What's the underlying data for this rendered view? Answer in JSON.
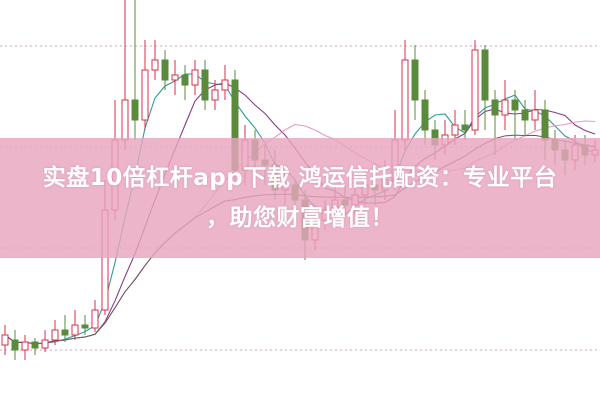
{
  "overlay": {
    "line1": "实盘10倍杠杆app下载 鸿运信托配资：专业平台",
    "line2": "，助您财富增值！"
  },
  "chart_data": {
    "type": "candlestick",
    "ylim": [
      0,
      400
    ],
    "grid": true,
    "colors": {
      "up": "#d9304a",
      "down": "#5b8a3c",
      "ma": [
        "#2a9d9a",
        "#8a3a8a",
        "#e79ac0",
        "#6b5a5a"
      ]
    },
    "moving_averages": [
      5,
      10,
      20,
      40
    ],
    "candles": [
      [
        55,
        65,
        75,
        45
      ],
      [
        60,
        50,
        70,
        40
      ],
      [
        50,
        58,
        65,
        40
      ],
      [
        58,
        52,
        62,
        45
      ],
      [
        52,
        60,
        70,
        48
      ],
      [
        60,
        70,
        80,
        55
      ],
      [
        70,
        65,
        85,
        58
      ],
      [
        65,
        75,
        90,
        60
      ],
      [
        75,
        72,
        85,
        65
      ],
      [
        72,
        90,
        100,
        68
      ],
      [
        90,
        190,
        220,
        85
      ],
      [
        190,
        260,
        300,
        180
      ],
      [
        260,
        300,
        400,
        250
      ],
      [
        300,
        280,
        400,
        260
      ],
      [
        280,
        330,
        360,
        270
      ],
      [
        330,
        340,
        360,
        320
      ],
      [
        340,
        320,
        350,
        310
      ],
      [
        320,
        325,
        340,
        305
      ],
      [
        325,
        315,
        335,
        300
      ],
      [
        315,
        330,
        340,
        305
      ],
      [
        330,
        300,
        340,
        290
      ],
      [
        300,
        310,
        320,
        290
      ],
      [
        310,
        320,
        335,
        300
      ],
      [
        320,
        230,
        330,
        220
      ],
      [
        230,
        260,
        275,
        215
      ],
      [
        260,
        240,
        270,
        225
      ],
      [
        240,
        235,
        255,
        215
      ],
      [
        235,
        210,
        250,
        200
      ],
      [
        210,
        215,
        230,
        195
      ],
      [
        215,
        200,
        220,
        185
      ],
      [
        200,
        160,
        210,
        140
      ],
      [
        160,
        180,
        190,
        150
      ],
      [
        180,
        190,
        200,
        170
      ],
      [
        190,
        200,
        215,
        180
      ],
      [
        200,
        195,
        215,
        185
      ],
      [
        195,
        205,
        220,
        185
      ],
      [
        205,
        215,
        230,
        195
      ],
      [
        215,
        210,
        225,
        195
      ],
      [
        210,
        220,
        240,
        200
      ],
      [
        220,
        260,
        290,
        210
      ],
      [
        260,
        340,
        360,
        250
      ],
      [
        340,
        300,
        355,
        280
      ],
      [
        300,
        270,
        310,
        255
      ],
      [
        270,
        255,
        280,
        240
      ],
      [
        255,
        265,
        280,
        245
      ],
      [
        265,
        275,
        290,
        255
      ],
      [
        275,
        270,
        290,
        260
      ],
      [
        270,
        350,
        360,
        265
      ],
      [
        350,
        300,
        355,
        270
      ],
      [
        300,
        285,
        310,
        245
      ],
      [
        285,
        300,
        320,
        270
      ],
      [
        300,
        290,
        310,
        260
      ],
      [
        290,
        280,
        300,
        265
      ],
      [
        280,
        290,
        310,
        270
      ],
      [
        290,
        260,
        300,
        240
      ],
      [
        260,
        250,
        270,
        235
      ],
      [
        250,
        240,
        260,
        225
      ],
      [
        240,
        255,
        265,
        230
      ],
      [
        255,
        245,
        265,
        235
      ],
      [
        245,
        250,
        260,
        238
      ]
    ],
    "candle_fields": [
      "open",
      "close",
      "high",
      "low"
    ]
  }
}
